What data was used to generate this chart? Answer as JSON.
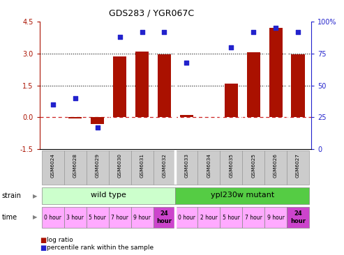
{
  "title": "GDS283 / YGR067C",
  "samples": [
    "GSM6024",
    "GSM6028",
    "GSM6029",
    "GSM6030",
    "GSM6031",
    "GSM6032",
    "GSM6033",
    "GSM6034",
    "GSM6035",
    "GSM6025",
    "GSM6026",
    "GSM6027"
  ],
  "log_ratio": [
    0.0,
    -0.05,
    -0.3,
    2.85,
    3.1,
    2.95,
    0.12,
    0.0,
    1.6,
    3.05,
    4.2,
    2.95
  ],
  "percentile": [
    35,
    40,
    17,
    88,
    92,
    92,
    68,
    null,
    80,
    92,
    95,
    92
  ],
  "ylim_left": [
    -1.5,
    4.5
  ],
  "yticks_left": [
    -1.5,
    0.0,
    1.5,
    3.0,
    4.5
  ],
  "yticks_right": [
    0,
    25,
    50,
    75,
    100
  ],
  "ylim_right": [
    0,
    100
  ],
  "hlines": [
    1.5,
    3.0
  ],
  "bar_color": "#aa1100",
  "dot_color": "#2222cc",
  "zero_line_color": "#cc2222",
  "zero_line_style": "--",
  "hline_style": ":",
  "hline_color": "black",
  "strain_labels": [
    "wild type",
    "ypl230w mutant"
  ],
  "strain_color_wt": "#ccffcc",
  "strain_color_mut": "#55cc44",
  "time_labels_wt": [
    "0 hour",
    "3 hour",
    "5 hour",
    "7 hour",
    "9 hour",
    "24\nhour"
  ],
  "time_labels_mut": [
    "0 hour",
    "2 hour",
    "5 hour",
    "7 hour",
    "9 hour",
    "24\nhour"
  ],
  "time_color_normal": "#ffaaff",
  "time_color_24h": "#cc44cc",
  "label_strain": "strain",
  "label_time": "time",
  "legend_log": "log ratio",
  "legend_pct": "percentile rank within the sample",
  "bg_color": "#ffffff",
  "sample_bg_color": "#cccccc",
  "sample_border_color": "#999999",
  "right_axis_color": "#2222cc"
}
